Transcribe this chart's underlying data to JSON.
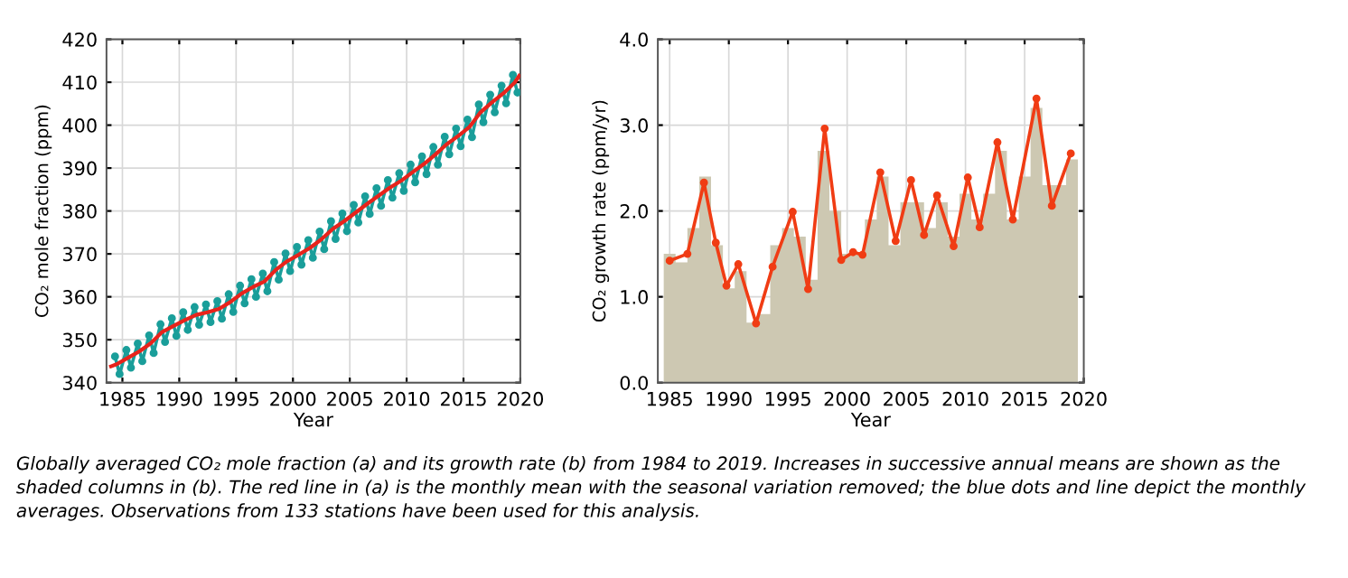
{
  "chart_data": [
    {
      "type": "line",
      "ylabel": "CO₂ mole fraction (ppm)",
      "xlabel": "Year",
      "xlim": [
        1983.6,
        2020
      ],
      "xticks": [
        1985,
        1990,
        1995,
        2000,
        2005,
        2010,
        2015,
        2020
      ],
      "ylim": [
        340,
        420
      ],
      "yticks": [
        340,
        350,
        360,
        370,
        380,
        390,
        400,
        410,
        420
      ],
      "grid": true,
      "annotations": [
        "Globally averaged CO₂ mole fraction (a) and its growth rate (b) from 1984 to 2019. Increases in successive annual means are shown as the shaded columns in (b). The red line in (a) is the monthly mean with the seasonal variation removed; the blue dots and line depict the monthly averages. Observations from 133 stations have been used for this analysis."
      ],
      "series": [
        {
          "type": "line",
          "marker": "circle",
          "color": "#1a9e9a",
          "x": [
            1984.35,
            1984.75,
            1985.35,
            1985.75,
            1986.35,
            1986.75,
            1987.35,
            1987.75,
            1988.35,
            1988.75,
            1989.35,
            1989.75,
            1990.35,
            1990.75,
            1991.35,
            1991.75,
            1992.35,
            1992.75,
            1993.35,
            1993.75,
            1994.35,
            1994.75,
            1995.35,
            1995.75,
            1996.35,
            1996.75,
            1997.35,
            1997.75,
            1998.35,
            1998.75,
            1999.35,
            1999.75,
            2000.35,
            2000.75,
            2001.35,
            2001.75,
            2002.35,
            2002.75,
            2003.35,
            2003.75,
            2004.35,
            2004.75,
            2005.35,
            2005.75,
            2006.35,
            2006.75,
            2007.35,
            2007.75,
            2008.35,
            2008.75,
            2009.35,
            2009.75,
            2010.35,
            2010.75,
            2011.35,
            2011.75,
            2012.35,
            2012.75,
            2013.35,
            2013.75,
            2014.35,
            2014.75,
            2015.35,
            2015.75,
            2016.35,
            2016.75,
            2017.35,
            2017.75,
            2018.35,
            2018.75,
            2019.35,
            2019.75
          ],
          "values": [
            346.1,
            342.0,
            347.6,
            343.5,
            349.1,
            345.0,
            351.0,
            346.9,
            353.6,
            349.5,
            355.0,
            350.9,
            356.4,
            352.3,
            357.6,
            353.5,
            358.2,
            354.1,
            359.0,
            354.9,
            360.6,
            356.5,
            362.6,
            358.5,
            364.1,
            360.0,
            365.4,
            361.3,
            368.1,
            364.0,
            370.1,
            366.0,
            371.6,
            367.5,
            373.2,
            369.1,
            375.2,
            371.1,
            377.6,
            373.5,
            379.4,
            375.3,
            381.4,
            377.3,
            383.4,
            379.3,
            385.3,
            381.2,
            387.2,
            383.1,
            388.8,
            384.7,
            390.8,
            386.7,
            392.7,
            388.6,
            394.9,
            390.8,
            397.3,
            393.2,
            399.2,
            395.1,
            401.3,
            397.2,
            404.8,
            400.7,
            407.1,
            403.0,
            409.2,
            405.1,
            411.7,
            407.6
          ]
        },
        {
          "type": "line",
          "color": "#e8231b",
          "x": [
            1984.0,
            1984.5,
            1985.5,
            1986.5,
            1987.5,
            1988.5,
            1989.5,
            1990.5,
            1991.5,
            1992.5,
            1993.5,
            1994.5,
            1995.5,
            1996.5,
            1997.5,
            1998.5,
            1999.5,
            2000.5,
            2001.5,
            2002.5,
            2003.5,
            2004.5,
            2005.5,
            2006.5,
            2007.5,
            2008.5,
            2009.5,
            2010.5,
            2011.5,
            2012.5,
            2013.5,
            2014.5,
            2015.5,
            2016.5,
            2017.5,
            2018.5,
            2019.5,
            2019.9
          ],
          "values": [
            343.8,
            344.3,
            345.8,
            347.3,
            349.2,
            351.8,
            353.2,
            354.6,
            355.8,
            356.4,
            357.2,
            358.8,
            360.8,
            362.3,
            363.6,
            366.3,
            368.3,
            369.8,
            371.4,
            373.4,
            375.8,
            377.6,
            379.6,
            381.6,
            383.5,
            385.4,
            387.0,
            389.0,
            390.9,
            393.1,
            395.5,
            397.4,
            399.5,
            403.0,
            405.3,
            407.4,
            409.9,
            411.5
          ]
        }
      ]
    },
    {
      "type": "histogram",
      "ylabel": "CO₂ growth rate (ppm/yr)",
      "xlabel": "Year",
      "xlim": [
        1984,
        2020
      ],
      "xticks": [
        1985,
        1990,
        1995,
        2000,
        2005,
        2010,
        2015,
        2020
      ],
      "ylim": [
        0,
        4
      ],
      "yticks": [
        {
          "value": 0,
          "label": "0.0"
        },
        {
          "value": 1,
          "label": "1.0"
        },
        {
          "value": 2,
          "label": "2.0"
        },
        {
          "value": 3,
          "label": "3.0"
        },
        {
          "value": 4,
          "label": "4.0"
        }
      ],
      "grid": true,
      "color": "#cdc8b2",
      "bins": [
        1984.5,
        1985.5,
        1986.5,
        1987.5,
        1988.5,
        1989.5,
        1990.5,
        1991.5,
        1992.5,
        1993.5,
        1994.5,
        1995.5,
        1996.5,
        1997.5,
        1998.5,
        1999.5,
        2000.5,
        2001.5,
        2002.5,
        2003.5,
        2004.5,
        2005.5,
        2006.5,
        2007.5,
        2008.5,
        2009.5,
        2010.5,
        2011.5,
        2012.5,
        2013.5,
        2014.5,
        2015.5,
        2016.5,
        2017.5,
        2018.5,
        2019.5
      ],
      "values": [
        1.5,
        1.4,
        1.8,
        2.4,
        1.6,
        1.1,
        1.3,
        0.7,
        0.8,
        1.6,
        1.8,
        1.7,
        1.2,
        2.7,
        2.0,
        1.5,
        1.5,
        1.9,
        2.4,
        1.6,
        2.1,
        2.1,
        1.8,
        2.1,
        1.7,
        2.2,
        1.9,
        2.2,
        2.7,
        1.9,
        2.4,
        3.2,
        2.3,
        2.3,
        2.6
      ],
      "series": [
        {
          "type": "line",
          "marker": "circle",
          "color": "#f03c14",
          "x": [
            1985.0,
            1986.5,
            1987.9,
            1988.9,
            1989.8,
            1990.8,
            1992.3,
            1993.7,
            1995.4,
            1996.7,
            1998.1,
            1999.5,
            2000.5,
            2001.3,
            2002.8,
            2004.1,
            2005.4,
            2006.5,
            2007.6,
            2009.0,
            2010.2,
            2011.2,
            2012.7,
            2014.0,
            2016.0,
            2017.3,
            2018.9
          ],
          "values": [
            1.42,
            1.5,
            2.33,
            1.63,
            1.13,
            1.38,
            0.69,
            1.35,
            1.99,
            1.09,
            2.96,
            1.43,
            1.52,
            1.49,
            2.45,
            1.65,
            2.36,
            1.72,
            2.18,
            1.59,
            2.39,
            1.81,
            2.8,
            1.9,
            3.31,
            2.06,
            2.67
          ]
        }
      ]
    }
  ]
}
